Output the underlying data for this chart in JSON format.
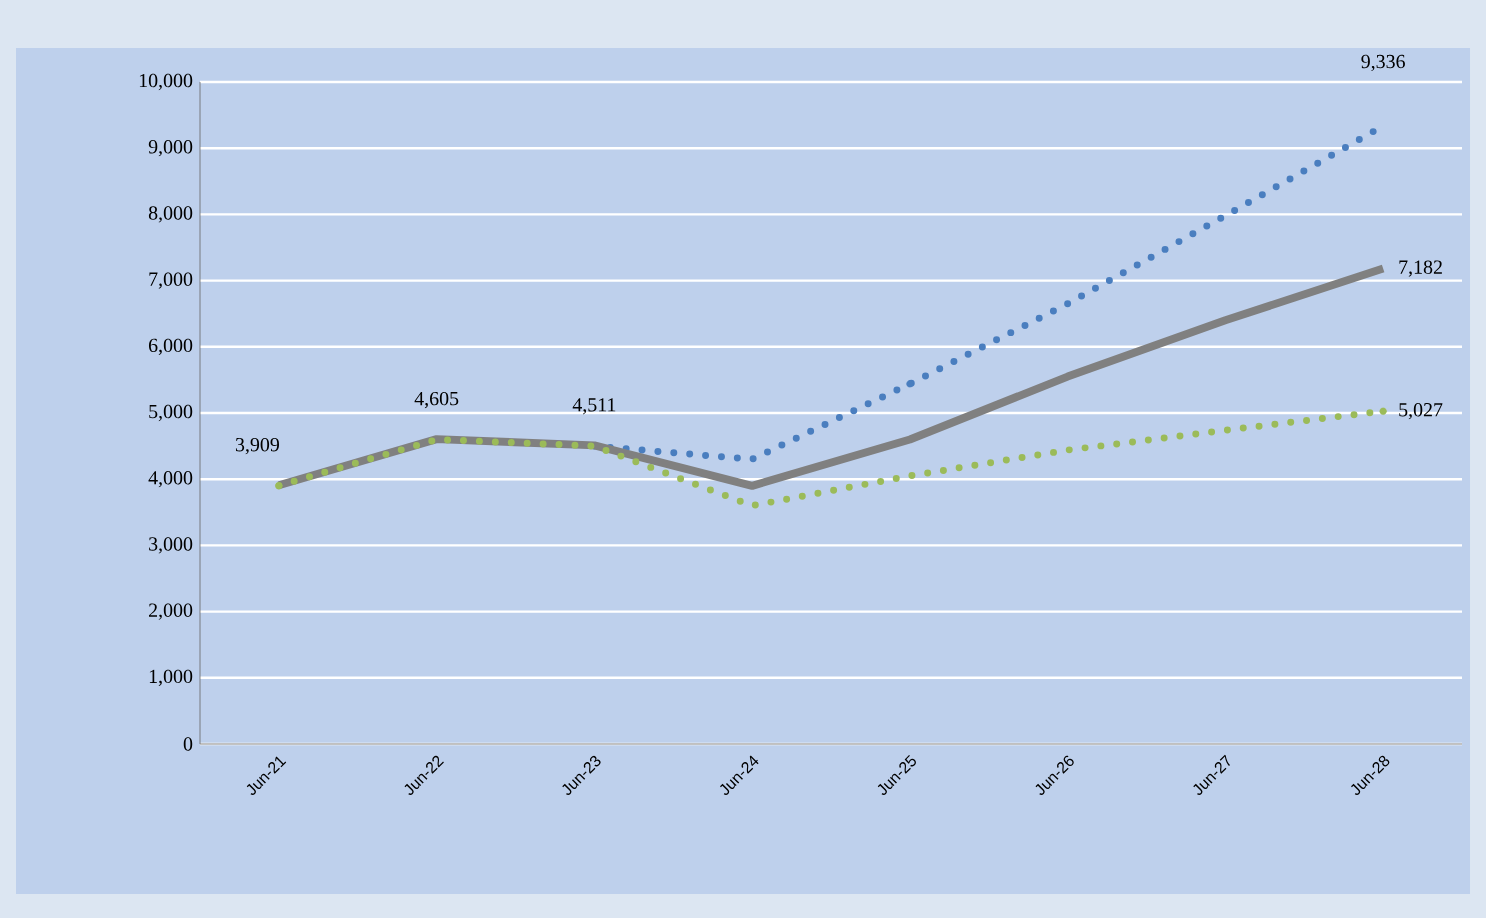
{
  "chart_data": {
    "type": "line",
    "categories": [
      "Jun-21",
      "Jun-22",
      "Jun-23",
      "Jun-24",
      "Jun-25",
      "Jun-26",
      "Jun-27",
      "Jun-28"
    ],
    "series": [
      {
        "color": "#4a7ebf",
        "line_style": "dotted",
        "values": [
          null,
          null,
          4500,
          4300,
          5440,
          6650,
          7980,
          9336
        ],
        "value_labels": [
          null,
          null,
          null,
          null,
          null,
          null,
          null,
          "9,336"
        ]
      },
      {
        "color": "#808080",
        "line_style": "solid",
        "values": [
          3909,
          4605,
          4511,
          3900,
          4600,
          5550,
          6400,
          7182
        ],
        "value_labels": [
          "3,909",
          "4,605",
          "4,511",
          null,
          null,
          null,
          null,
          "7,182"
        ]
      },
      {
        "color": "#9bbb59",
        "line_style": "dotted",
        "values": [
          3900,
          4600,
          4500,
          3600,
          4050,
          4440,
          4740,
          5027
        ],
        "value_labels": [
          null,
          null,
          null,
          null,
          null,
          null,
          null,
          "5,027"
        ]
      }
    ],
    "ylim": [
      0,
      10000
    ],
    "yticks": [
      0,
      {
        "value": 1000,
        "label": "1,000"
      },
      {
        "value": 2000,
        "label": "2,000"
      },
      {
        "value": 3000,
        "label": "3,000"
      },
      {
        "value": 4000,
        "label": "4,000"
      },
      {
        "value": 5000,
        "label": "5,000"
      },
      {
        "value": 6000,
        "label": "6,000"
      },
      {
        "value": 7000,
        "label": "7,000"
      },
      {
        "value": 8000,
        "label": "8,000"
      },
      {
        "value": 9000,
        "label": "9,000"
      },
      {
        "value": 10000,
        "label": "10,000"
      }
    ],
    "grid": "y",
    "marker": "none"
  }
}
